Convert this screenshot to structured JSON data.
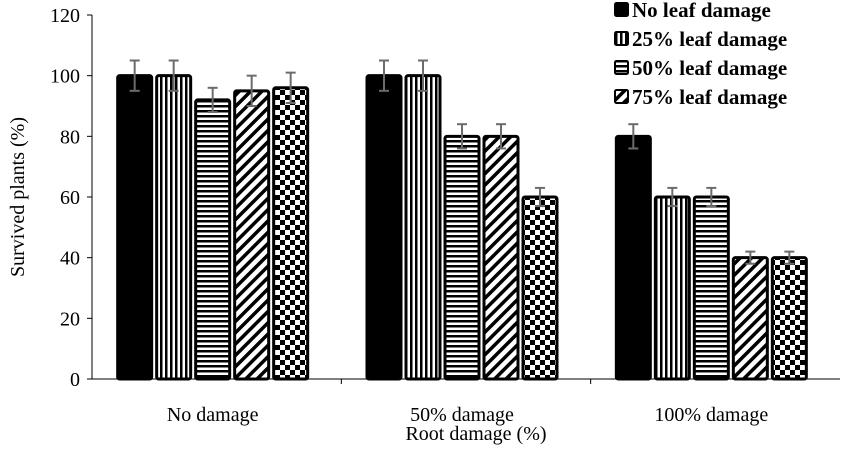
{
  "chart_data": {
    "type": "bar",
    "title": "",
    "xlabel": "Root damage (%)",
    "ylabel": "Survived plants (%)",
    "ylim": [
      0,
      120
    ],
    "yticks": [
      0,
      20,
      40,
      60,
      80,
      100,
      120
    ],
    "grid": false,
    "legend_position": "top-right",
    "categories": [
      "No damage",
      "50% damage",
      "100% damage"
    ],
    "series": [
      {
        "name": "No leaf damage",
        "pattern": "solid",
        "values": [
          100,
          100,
          80
        ],
        "errors": [
          5,
          5,
          4
        ]
      },
      {
        "name": "25% leaf damage",
        "pattern": "vertical",
        "values": [
          100,
          100,
          60
        ],
        "errors": [
          5,
          5,
          3
        ]
      },
      {
        "name": "50% leaf damage",
        "pattern": "horizontal",
        "values": [
          92,
          80,
          60
        ],
        "errors": [
          4,
          4,
          3
        ]
      },
      {
        "name": "75% leaf damage",
        "pattern": "diagonal",
        "values": [
          95,
          80,
          40
        ],
        "errors": [
          5,
          4,
          2
        ]
      },
      {
        "name": "",
        "pattern": "checker",
        "values": [
          96,
          60,
          40
        ],
        "errors": [
          5,
          3,
          2
        ]
      }
    ],
    "colors": {
      "bar": "#000000",
      "error": "#6b6b6b"
    }
  }
}
